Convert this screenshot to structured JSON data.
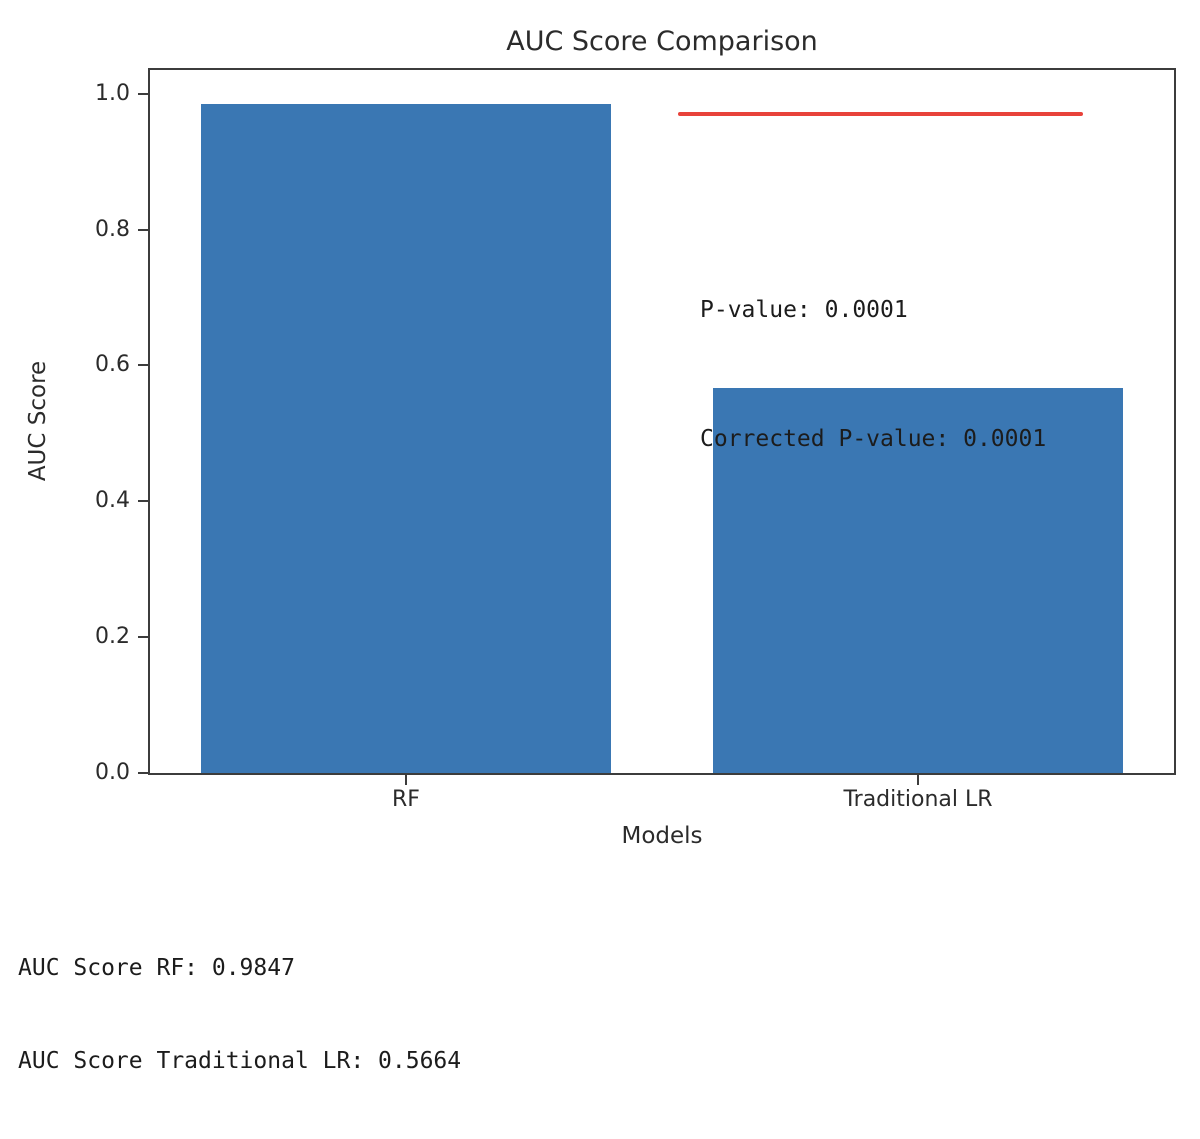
{
  "chart_data": {
    "type": "bar",
    "title": "AUC Score Comparison",
    "xlabel": "Models",
    "ylabel": "AUC Score",
    "categories": [
      "RF",
      "Traditional LR"
    ],
    "values": [
      0.9847,
      0.5664
    ],
    "ylim": [
      0.0,
      1.035
    ],
    "yticks": [
      "0.0",
      "0.2",
      "0.4",
      "0.6",
      "0.8",
      "1.0"
    ],
    "grid": false,
    "legend": "none",
    "bar_color": "#3a77b3",
    "significance_line": {
      "y_value": 0.97,
      "color": "#e8423a"
    },
    "annotations": [
      "P-value: 0.0001",
      "Corrected P-value: 0.0001"
    ]
  },
  "footer": {
    "lines": [
      "AUC Score RF: 0.9847",
      "AUC Score Traditional LR: 0.5664"
    ]
  }
}
